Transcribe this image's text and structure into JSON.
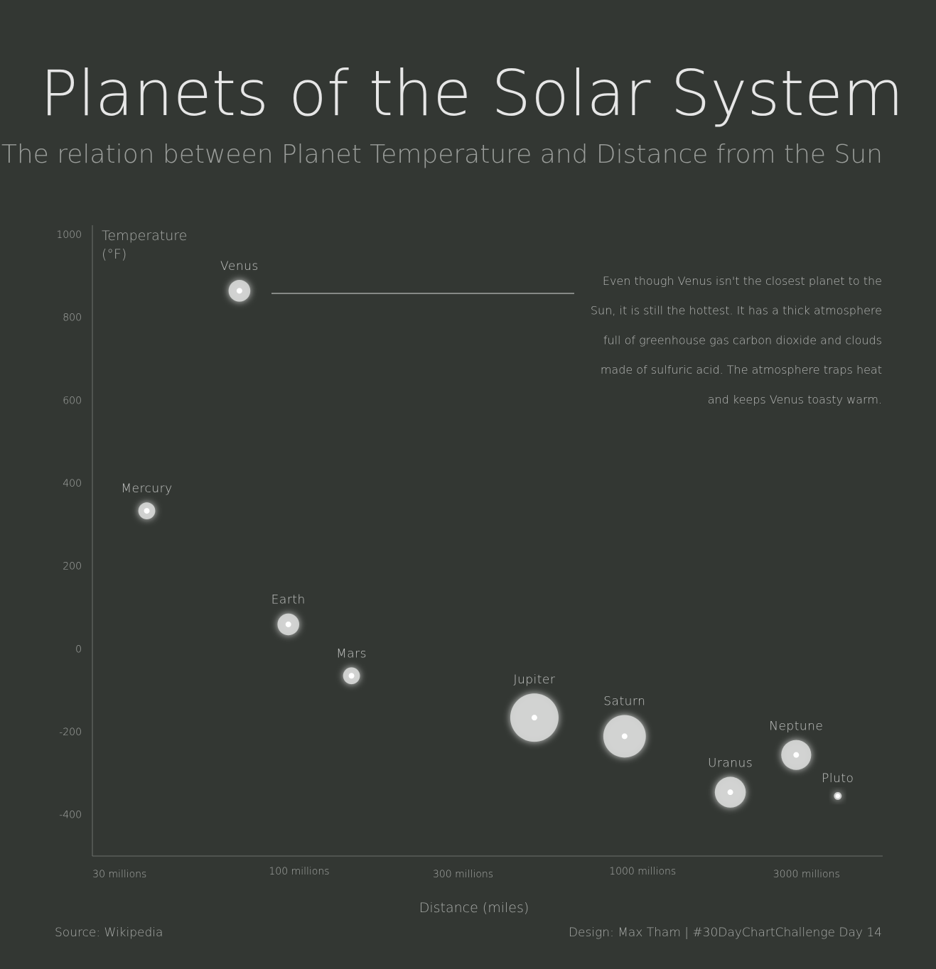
{
  "chart_data": {
    "type": "scatter",
    "title": "Planets of the Solar System",
    "subtitle": "The relation between Planet Temperature and Distance from the Sun",
    "xlabel": "Distance (miles)",
    "ylabel": "Temperature\n(°F)",
    "x_scale": "log",
    "xlim": [
      25000000,
      5000000000
    ],
    "ylim": [
      -500,
      1000
    ],
    "x_ticks": [
      {
        "value": 30000000,
        "label": "30 millions"
      },
      {
        "value": 100000000,
        "label": "100 millions"
      },
      {
        "value": 300000000,
        "label": "300 millions"
      },
      {
        "value": 1000000000,
        "label": "1000 millions"
      },
      {
        "value": 3000000000,
        "label": "3000 millions"
      }
    ],
    "y_ticks": [
      1000,
      800,
      600,
      400,
      200,
      0,
      -200,
      -400
    ],
    "points": [
      {
        "name": "Mercury",
        "x": 36000000,
        "y": 333,
        "size": 0.35
      },
      {
        "name": "Venus",
        "x": 67000000,
        "y": 864,
        "size": 0.45
      },
      {
        "name": "Earth",
        "x": 93000000,
        "y": 59,
        "size": 0.45
      },
      {
        "name": "Mars",
        "x": 142000000,
        "y": -65,
        "size": 0.35
      },
      {
        "name": "Jupiter",
        "x": 484000000,
        "y": -166,
        "size": 1.0
      },
      {
        "name": "Saturn",
        "x": 886000000,
        "y": -211,
        "size": 0.88
      },
      {
        "name": "Uranus",
        "x": 1800000000,
        "y": -346,
        "size": 0.64
      },
      {
        "name": "Neptune",
        "x": 2800000000,
        "y": -256,
        "size": 0.62
      },
      {
        "name": "Pluto",
        "x": 3700000000,
        "y": -355,
        "size": 0.16
      }
    ],
    "annotation": {
      "target": "Venus",
      "lines": [
        "Even though Venus isn't the closest planet to the",
        "Sun, it is still the hottest. It has a thick atmosphere",
        "full of greenhouse gas carbon dioxide and clouds",
        "made of sulfuric acid. The atmosphere traps heat",
        "and keeps Venus toasty warm."
      ]
    },
    "grid": false,
    "colors": {
      "background": "#333733",
      "planet": "#d3d4d3",
      "planet_core": "#ffffff",
      "axis": "#6d716d"
    }
  },
  "footer": {
    "source": "Source: Wikipedia",
    "credit": "Design: Max Tham | #30DayChartChallenge Day 14"
  }
}
